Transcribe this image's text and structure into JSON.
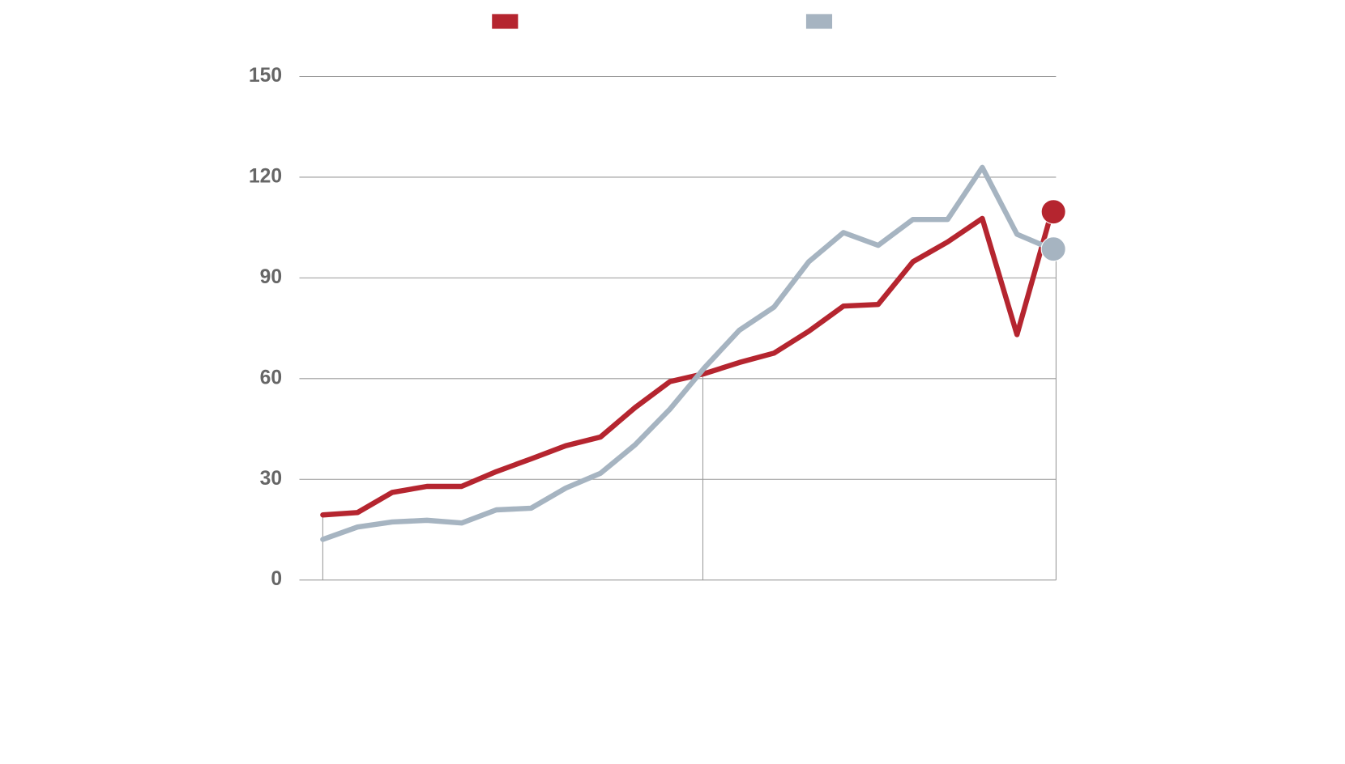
{
  "chart_data": {
    "type": "line",
    "categories": [
      null,
      null,
      null,
      null,
      null,
      null,
      null,
      null,
      null,
      null,
      null,
      null,
      null,
      null,
      null,
      null,
      null,
      null,
      null,
      null,
      null,
      null
    ],
    "series": [
      {
        "color": "#b5252f",
        "values": [
          19.4,
          20.1,
          26.1,
          27.9,
          27.9,
          32.3,
          36.1,
          40.0,
          42.6,
          51.4,
          59.1,
          61.5,
          64.8,
          67.6,
          74.1,
          81.6,
          82.1,
          94.8,
          100.7,
          107.7,
          73.1,
          109.7
        ]
      },
      {
        "color": "#a6b4c1",
        "values": [
          12.1,
          15.8,
          17.3,
          17.8,
          17.0,
          20.9,
          21.4,
          27.4,
          31.8,
          40.3,
          50.9,
          63.3,
          74.4,
          81.3,
          94.8,
          103.5,
          99.7,
          107.4,
          107.4,
          122.9,
          103.0,
          98.6
        ]
      }
    ],
    "ylim": [
      0,
      150
    ],
    "yticks": [
      0,
      30,
      60,
      90,
      120,
      150
    ],
    "grid": true
  }
}
